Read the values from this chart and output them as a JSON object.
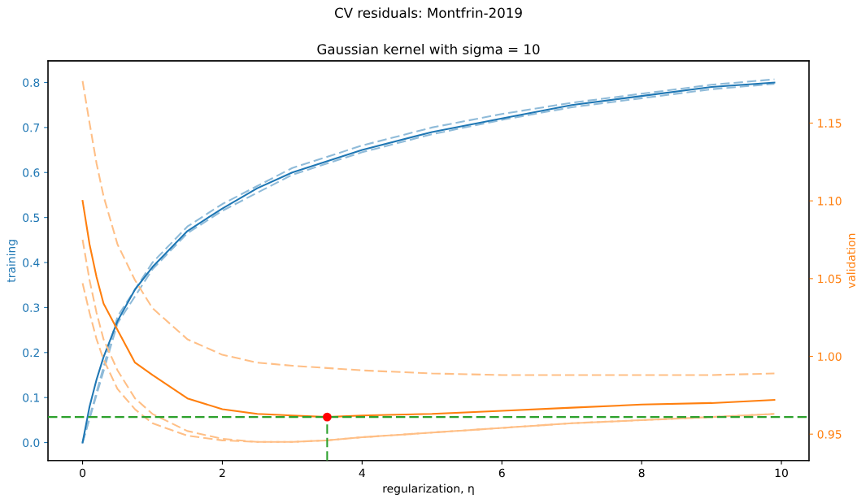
{
  "chart_data": {
    "type": "line",
    "title": "CV residuals: Montfrin-2019",
    "subtitle": "Gaussian kernel with sigma = 10",
    "xlabel": "regularization, η",
    "ylabel": "training",
    "y2label": "validation",
    "xlim": [
      -0.495,
      10.395
    ],
    "xticks": [
      0,
      2,
      4,
      6,
      8,
      10
    ],
    "ylim": [
      -0.04,
      0.848
    ],
    "yticks": [
      {
        "value": 0,
        "label": "0.0"
      },
      {
        "value": 0.1,
        "label": "0.1"
      },
      {
        "value": 0.2,
        "label": "0.2"
      },
      {
        "value": 0.3,
        "label": "0.3"
      },
      {
        "value": 0.4,
        "label": "0.4"
      },
      {
        "value": 0.5,
        "label": "0.5"
      },
      {
        "value": 0.6,
        "label": "0.6"
      },
      {
        "value": 0.7,
        "label": "0.7"
      },
      {
        "value": 0.8,
        "label": "0.8"
      }
    ],
    "y2lim": [
      0.933,
      1.19
    ],
    "y2ticks": [
      {
        "value": 0.95,
        "label": "0.95"
      },
      {
        "value": 1.0,
        "label": "1.00"
      },
      {
        "value": 1.05,
        "label": "1.05"
      },
      {
        "value": 1.1,
        "label": "1.10"
      },
      {
        "value": 1.15,
        "label": "1.15"
      }
    ],
    "grid": false,
    "legend": false,
    "series": [
      {
        "color": "#8fbbd9",
        "line_style": "dashed",
        "x": [
          0,
          0.5,
          1,
          1.5,
          2,
          3,
          4,
          5,
          6,
          7,
          8,
          9,
          9.9
        ],
        "values": [
          0,
          0.28,
          0.4,
          0.48,
          0.53,
          0.61,
          0.66,
          0.7,
          0.73,
          0.755,
          0.775,
          0.795,
          0.807
        ]
      },
      {
        "color": "#8fbbd9",
        "line_style": "dashed",
        "x": [
          0,
          0.5,
          1,
          1.5,
          2,
          3,
          4,
          5,
          6,
          7,
          8,
          9,
          9.9
        ],
        "values": [
          0,
          0.265,
          0.385,
          0.465,
          0.515,
          0.595,
          0.645,
          0.685,
          0.717,
          0.745,
          0.765,
          0.785,
          0.797
        ]
      },
      {
        "color": "#1f77b4",
        "line_style": "solid",
        "x": [
          0,
          0.1,
          0.2,
          0.3,
          0.5,
          0.75,
          1,
          1.5,
          2,
          2.5,
          3,
          4,
          5,
          6,
          7,
          8,
          9,
          9.9
        ],
        "values": [
          0,
          0.08,
          0.14,
          0.19,
          0.27,
          0.34,
          0.39,
          0.47,
          0.52,
          0.565,
          0.6,
          0.65,
          0.69,
          0.72,
          0.75,
          0.77,
          0.79,
          0.8
        ]
      },
      {
        "color": "#ffbf86",
        "line_style": "dashed",
        "axis": "y2",
        "x": [
          0,
          0.1,
          0.2,
          0.3,
          0.5,
          0.75,
          1,
          1.5,
          2,
          2.5,
          3,
          4,
          5,
          6,
          7,
          8,
          9,
          9.9
        ],
        "values": [
          1.177,
          1.15,
          1.124,
          1.103,
          1.072,
          1.049,
          1.031,
          1.011,
          1.001,
          0.996,
          0.994,
          0.991,
          0.989,
          0.988,
          0.988,
          0.988,
          0.988,
          0.989
        ]
      },
      {
        "color": "#ffbf86",
        "line_style": "dashed",
        "axis": "y2",
        "x": [
          0,
          0.1,
          0.2,
          0.3,
          0.5,
          0.75,
          1,
          1.5,
          2,
          2.5,
          3,
          3.5,
          4,
          5,
          6,
          7,
          8,
          9,
          9.9
        ],
        "values": [
          1.075,
          1.049,
          1.028,
          1.011,
          0.991,
          0.973,
          0.963,
          0.952,
          0.947,
          0.945,
          0.945,
          0.946,
          0.948,
          0.951,
          0.954,
          0.957,
          0.959,
          0.961,
          0.963
        ]
      },
      {
        "color": "#ffbf86",
        "line_style": "dashed",
        "axis": "y2",
        "x": [
          0,
          0.1,
          0.2,
          0.3,
          0.5,
          0.75,
          1,
          1.5,
          2,
          2.5,
          3,
          3.5,
          4,
          5,
          6,
          7,
          8,
          9,
          9.9
        ],
        "values": [
          1.047,
          1.028,
          1.011,
          0.998,
          0.979,
          0.966,
          0.957,
          0.949,
          0.946,
          0.945,
          0.945,
          0.946,
          0.948,
          0.951,
          0.954,
          0.957,
          0.959,
          0.961,
          0.963
        ]
      },
      {
        "color": "#ff7f0e",
        "line_style": "solid",
        "axis": "y2",
        "x": [
          0,
          0.1,
          0.2,
          0.3,
          0.5,
          0.75,
          1,
          1.5,
          2,
          2.5,
          3,
          3.5,
          4,
          5,
          6,
          7,
          8,
          9,
          9.9
        ],
        "values": [
          1.1,
          1.072,
          1.051,
          1.034,
          1.017,
          0.996,
          0.988,
          0.973,
          0.966,
          0.963,
          0.962,
          0.961,
          0.962,
          0.963,
          0.965,
          0.967,
          0.969,
          0.97,
          0.972
        ]
      },
      {
        "type": "scatter",
        "color": "#ff0000",
        "marker": "circle",
        "axis": "y2",
        "x": [
          3.5
        ],
        "values": [
          0.961
        ]
      }
    ],
    "ref_lines": [
      {
        "axis": "y2",
        "value": 0.961,
        "color": "#2ca02c",
        "line_style": "dashed"
      },
      {
        "axis": "x",
        "value": 3.5,
        "color": "#2ca02c",
        "line_style": "dashed"
      }
    ]
  }
}
